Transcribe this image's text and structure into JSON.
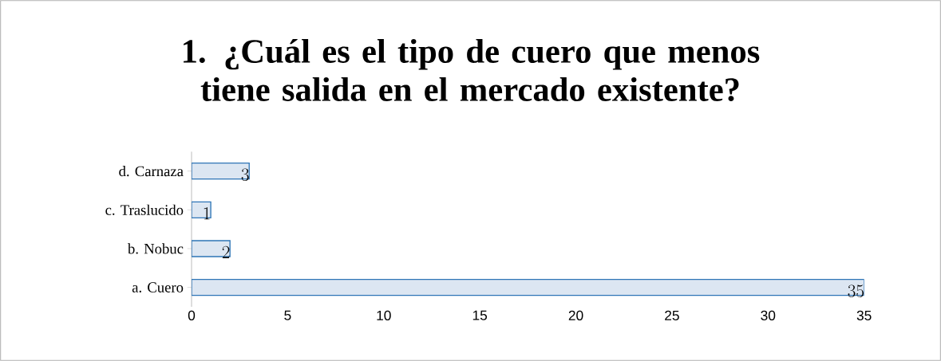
{
  "chart_data": {
    "type": "bar",
    "orientation": "horizontal",
    "title": "1. ¿Cuál es el tipo de cuero que menos tiene salida en el mercado existente?",
    "categories": [
      "d. Carnaza",
      "c. Traslucido",
      "b. Nobuc",
      "a. Cuero"
    ],
    "values": [
      3,
      1,
      2,
      35
    ],
    "color": "#dce6f2",
    "xlim": [
      0,
      35
    ],
    "xticks": [
      0,
      5,
      10,
      15,
      20,
      25,
      30,
      35
    ],
    "data_labels": true
  }
}
